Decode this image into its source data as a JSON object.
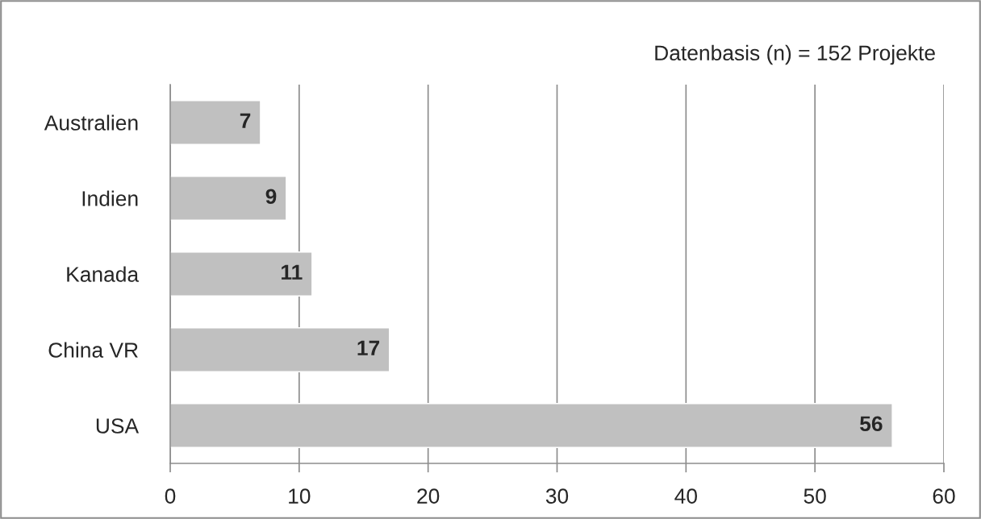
{
  "chart_data": {
    "type": "bar",
    "orientation": "horizontal",
    "categories": [
      "Australien",
      "Indien",
      "Kanada",
      "China VR",
      "USA"
    ],
    "values": [
      7,
      9,
      11,
      17,
      56
    ],
    "color": "#c0c0c0",
    "xlim": [
      0,
      60
    ],
    "xticks": [
      0,
      10,
      20,
      30,
      40,
      50,
      60
    ],
    "grid": "x",
    "data_labels": true,
    "annotations": [
      "Datenbasis (n) = 152 Projekte"
    ]
  }
}
